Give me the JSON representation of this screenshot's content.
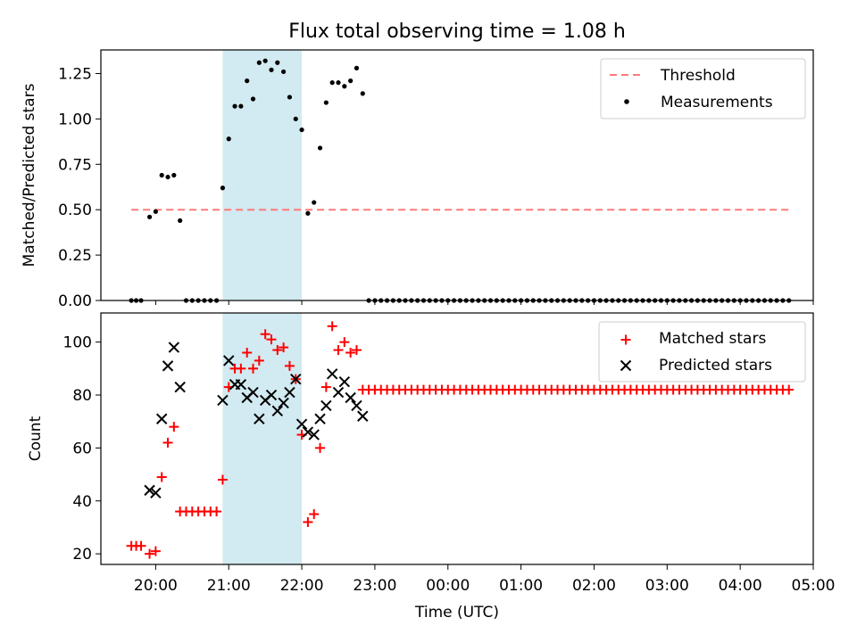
{
  "figure_title": "Flux total observing time = 1.08 h",
  "chart_data": [
    {
      "type": "scatter",
      "panel": "top",
      "ylabel": "Matched/Predicted stars",
      "xlabel": "",
      "xlim": [
        "19:15",
        "05:00"
      ],
      "ylim": [
        0,
        1.38
      ],
      "yticks": [
        0.0,
        0.25,
        0.5,
        0.75,
        1.0,
        1.25
      ],
      "ytick_labels": [
        "0.00",
        "0.25",
        "0.50",
        "0.75",
        "1.00",
        "1.25"
      ],
      "shaded_span": [
        "20:55",
        "22:00"
      ],
      "legend_position": "upper-right",
      "threshold": {
        "name": "Threshold",
        "y": 0.5,
        "x_start": "19:40",
        "x_end": "04:40",
        "color": "#ff7a7a",
        "style": "dashed"
      },
      "series": [
        {
          "name": "Measurements",
          "color": "#000000",
          "marker": "dot",
          "points": [
            [
              "19:40",
              0.0
            ],
            [
              "19:44",
              0.0
            ],
            [
              "19:48",
              0.0
            ],
            [
              "19:55",
              0.46
            ],
            [
              "20:00",
              0.49
            ],
            [
              "20:05",
              0.69
            ],
            [
              "20:10",
              0.68
            ],
            [
              "20:15",
              0.69
            ],
            [
              "20:20",
              0.44
            ],
            [
              "20:25",
              0.0
            ],
            [
              "20:30",
              0.0
            ],
            [
              "20:35",
              0.0
            ],
            [
              "20:40",
              0.0
            ],
            [
              "20:45",
              0.0
            ],
            [
              "20:50",
              0.0
            ],
            [
              "20:55",
              0.62
            ],
            [
              "21:00",
              0.89
            ],
            [
              "21:05",
              1.07
            ],
            [
              "21:10",
              1.07
            ],
            [
              "21:15",
              1.21
            ],
            [
              "21:20",
              1.11
            ],
            [
              "21:25",
              1.31
            ],
            [
              "21:30",
              1.32
            ],
            [
              "21:35",
              1.27
            ],
            [
              "21:40",
              1.31
            ],
            [
              "21:45",
              1.26
            ],
            [
              "21:50",
              1.12
            ],
            [
              "21:55",
              1.0
            ],
            [
              "22:00",
              0.94
            ],
            [
              "22:05",
              0.48
            ],
            [
              "22:10",
              0.54
            ],
            [
              "22:15",
              0.84
            ],
            [
              "22:20",
              1.09
            ],
            [
              "22:25",
              1.2
            ],
            [
              "22:30",
              1.2
            ],
            [
              "22:35",
              1.18
            ],
            [
              "22:40",
              1.21
            ],
            [
              "22:45",
              1.28
            ],
            [
              "22:50",
              1.14
            ],
            [
              "22:55",
              0.0
            ],
            [
              "23:00",
              0.0
            ],
            [
              "23:05",
              0.0
            ],
            [
              "23:10",
              0.0
            ],
            [
              "23:15",
              0.0
            ],
            [
              "23:20",
              0.0
            ],
            [
              "23:25",
              0.0
            ],
            [
              "23:30",
              0.0
            ],
            [
              "23:35",
              0.0
            ],
            [
              "23:40",
              0.0
            ],
            [
              "23:45",
              0.0
            ],
            [
              "23:50",
              0.0
            ],
            [
              "23:55",
              0.0
            ],
            [
              "00:00",
              0.0
            ],
            [
              "00:05",
              0.0
            ],
            [
              "00:10",
              0.0
            ],
            [
              "00:15",
              0.0
            ],
            [
              "00:20",
              0.0
            ],
            [
              "00:25",
              0.0
            ],
            [
              "00:30",
              0.0
            ],
            [
              "00:35",
              0.0
            ],
            [
              "00:40",
              0.0
            ],
            [
              "00:45",
              0.0
            ],
            [
              "00:50",
              0.0
            ],
            [
              "00:55",
              0.0
            ],
            [
              "01:00",
              0.0
            ],
            [
              "01:05",
              0.0
            ],
            [
              "01:10",
              0.0
            ],
            [
              "01:15",
              0.0
            ],
            [
              "01:20",
              0.0
            ],
            [
              "01:25",
              0.0
            ],
            [
              "01:30",
              0.0
            ],
            [
              "01:35",
              0.0
            ],
            [
              "01:40",
              0.0
            ],
            [
              "01:45",
              0.0
            ],
            [
              "01:50",
              0.0
            ],
            [
              "01:55",
              0.0
            ],
            [
              "02:00",
              0.0
            ],
            [
              "02:05",
              0.0
            ],
            [
              "02:10",
              0.0
            ],
            [
              "02:15",
              0.0
            ],
            [
              "02:20",
              0.0
            ],
            [
              "02:25",
              0.0
            ],
            [
              "02:30",
              0.0
            ],
            [
              "02:35",
              0.0
            ],
            [
              "02:40",
              0.0
            ],
            [
              "02:45",
              0.0
            ],
            [
              "02:50",
              0.0
            ],
            [
              "02:55",
              0.0
            ],
            [
              "03:00",
              0.0
            ],
            [
              "03:05",
              0.0
            ],
            [
              "03:10",
              0.0
            ],
            [
              "03:15",
              0.0
            ],
            [
              "03:20",
              0.0
            ],
            [
              "03:25",
              0.0
            ],
            [
              "03:30",
              0.0
            ],
            [
              "03:35",
              0.0
            ],
            [
              "03:40",
              0.0
            ],
            [
              "03:45",
              0.0
            ],
            [
              "03:50",
              0.0
            ],
            [
              "03:55",
              0.0
            ],
            [
              "04:00",
              0.0
            ],
            [
              "04:05",
              0.0
            ],
            [
              "04:10",
              0.0
            ],
            [
              "04:15",
              0.0
            ],
            [
              "04:20",
              0.0
            ],
            [
              "04:25",
              0.0
            ],
            [
              "04:30",
              0.0
            ],
            [
              "04:35",
              0.0
            ],
            [
              "04:40",
              0.0
            ]
          ]
        }
      ]
    },
    {
      "type": "scatter",
      "panel": "bottom",
      "ylabel": "Count",
      "xlabel": "Time (UTC)",
      "xlim": [
        "19:15",
        "05:00"
      ],
      "ylim": [
        16,
        111
      ],
      "yticks": [
        20,
        40,
        60,
        80,
        100
      ],
      "ytick_labels": [
        "20",
        "40",
        "60",
        "80",
        "100"
      ],
      "xticks": [
        "20:00",
        "21:00",
        "22:00",
        "23:00",
        "00:00",
        "01:00",
        "02:00",
        "03:00",
        "04:00",
        "05:00"
      ],
      "shaded_span": [
        "20:55",
        "22:00"
      ],
      "legend_position": "upper-right",
      "series": [
        {
          "name": "Matched stars",
          "color": "#ff0000",
          "marker": "plus",
          "points": [
            [
              "19:40",
              23
            ],
            [
              "19:44",
              23
            ],
            [
              "19:48",
              23
            ],
            [
              "19:55",
              20
            ],
            [
              "20:00",
              21
            ],
            [
              "20:05",
              49
            ],
            [
              "20:10",
              62
            ],
            [
              "20:15",
              68
            ],
            [
              "20:20",
              36
            ],
            [
              "20:25",
              36
            ],
            [
              "20:30",
              36
            ],
            [
              "20:35",
              36
            ],
            [
              "20:40",
              36
            ],
            [
              "20:45",
              36
            ],
            [
              "20:50",
              36
            ],
            [
              "20:55",
              48
            ],
            [
              "21:00",
              83
            ],
            [
              "21:05",
              90
            ],
            [
              "21:10",
              90
            ],
            [
              "21:15",
              96
            ],
            [
              "21:20",
              90
            ],
            [
              "21:25",
              93
            ],
            [
              "21:30",
              103
            ],
            [
              "21:35",
              101
            ],
            [
              "21:40",
              97
            ],
            [
              "21:45",
              98
            ],
            [
              "21:50",
              91
            ],
            [
              "21:55",
              86
            ],
            [
              "22:00",
              65
            ],
            [
              "22:05",
              32
            ],
            [
              "22:10",
              35
            ],
            [
              "22:15",
              60
            ],
            [
              "22:20",
              83
            ],
            [
              "22:25",
              106
            ],
            [
              "22:30",
              97
            ],
            [
              "22:35",
              100
            ],
            [
              "22:40",
              96
            ],
            [
              "22:45",
              97
            ],
            [
              "22:50",
              82
            ],
            [
              "22:55",
              82
            ],
            [
              "23:00",
              82
            ],
            [
              "23:05",
              82
            ],
            [
              "23:10",
              82
            ],
            [
              "23:15",
              82
            ],
            [
              "23:20",
              82
            ],
            [
              "23:25",
              82
            ],
            [
              "23:30",
              82
            ],
            [
              "23:35",
              82
            ],
            [
              "23:40",
              82
            ],
            [
              "23:45",
              82
            ],
            [
              "23:50",
              82
            ],
            [
              "23:55",
              82
            ],
            [
              "00:00",
              82
            ],
            [
              "00:05",
              82
            ],
            [
              "00:10",
              82
            ],
            [
              "00:15",
              82
            ],
            [
              "00:20",
              82
            ],
            [
              "00:25",
              82
            ],
            [
              "00:30",
              82
            ],
            [
              "00:35",
              82
            ],
            [
              "00:40",
              82
            ],
            [
              "00:45",
              82
            ],
            [
              "00:50",
              82
            ],
            [
              "00:55",
              82
            ],
            [
              "01:00",
              82
            ],
            [
              "01:05",
              82
            ],
            [
              "01:10",
              82
            ],
            [
              "01:15",
              82
            ],
            [
              "01:20",
              82
            ],
            [
              "01:25",
              82
            ],
            [
              "01:30",
              82
            ],
            [
              "01:35",
              82
            ],
            [
              "01:40",
              82
            ],
            [
              "01:45",
              82
            ],
            [
              "01:50",
              82
            ],
            [
              "01:55",
              82
            ],
            [
              "02:00",
              82
            ],
            [
              "02:05",
              82
            ],
            [
              "02:10",
              82
            ],
            [
              "02:15",
              82
            ],
            [
              "02:20",
              82
            ],
            [
              "02:25",
              82
            ],
            [
              "02:30",
              82
            ],
            [
              "02:35",
              82
            ],
            [
              "02:40",
              82
            ],
            [
              "02:45",
              82
            ],
            [
              "02:50",
              82
            ],
            [
              "02:55",
              82
            ],
            [
              "03:00",
              82
            ],
            [
              "03:05",
              82
            ],
            [
              "03:10",
              82
            ],
            [
              "03:15",
              82
            ],
            [
              "03:20",
              82
            ],
            [
              "03:25",
              82
            ],
            [
              "03:30",
              82
            ],
            [
              "03:35",
              82
            ],
            [
              "03:40",
              82
            ],
            [
              "03:45",
              82
            ],
            [
              "03:50",
              82
            ],
            [
              "03:55",
              82
            ],
            [
              "04:00",
              82
            ],
            [
              "04:05",
              82
            ],
            [
              "04:10",
              82
            ],
            [
              "04:15",
              82
            ],
            [
              "04:20",
              82
            ],
            [
              "04:25",
              82
            ],
            [
              "04:30",
              82
            ],
            [
              "04:35",
              82
            ],
            [
              "04:40",
              82
            ]
          ]
        },
        {
          "name": "Predicted stars",
          "color": "#000000",
          "marker": "x",
          "points": [
            [
              "19:55",
              44
            ],
            [
              "20:00",
              43
            ],
            [
              "20:05",
              71
            ],
            [
              "20:10",
              91
            ],
            [
              "20:15",
              98
            ],
            [
              "20:20",
              83
            ],
            [
              "20:55",
              78
            ],
            [
              "21:00",
              93
            ],
            [
              "21:05",
              84
            ],
            [
              "21:10",
              84
            ],
            [
              "21:15",
              79
            ],
            [
              "21:20",
              81
            ],
            [
              "21:25",
              71
            ],
            [
              "21:30",
              78
            ],
            [
              "21:35",
              80
            ],
            [
              "21:40",
              74
            ],
            [
              "21:45",
              77
            ],
            [
              "21:50",
              81
            ],
            [
              "21:55",
              86
            ],
            [
              "22:00",
              69
            ],
            [
              "22:05",
              66
            ],
            [
              "22:10",
              65
            ],
            [
              "22:15",
              71
            ],
            [
              "22:20",
              76
            ],
            [
              "22:25",
              88
            ],
            [
              "22:30",
              81
            ],
            [
              "22:35",
              85
            ],
            [
              "22:40",
              79
            ],
            [
              "22:45",
              76
            ],
            [
              "22:50",
              72
            ]
          ]
        }
      ]
    }
  ],
  "colors": {
    "shade": "#add8e6",
    "matched": "#ff0000",
    "predicted": "#000000",
    "threshold": "#ff7a7a"
  }
}
